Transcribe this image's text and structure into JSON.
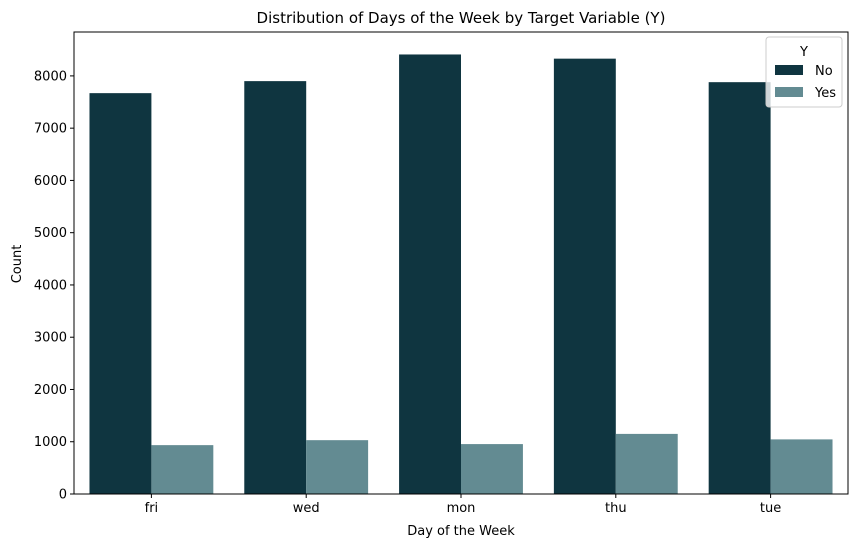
{
  "chart_data": {
    "type": "bar",
    "title": "Distribution of Days of the Week by Target Variable (Y)",
    "xlabel": "Day of the Week",
    "ylabel": "Count",
    "categories": [
      "fri",
      "wed",
      "mon",
      "thu",
      "tue"
    ],
    "series": [
      {
        "name": "No",
        "color": "#0f3540",
        "values": [
          7670,
          7900,
          8410,
          8330,
          7880
        ]
      },
      {
        "name": "Yes",
        "color": "#638b92",
        "values": [
          935,
          1030,
          955,
          1150,
          1045
        ]
      }
    ],
    "ylim": [
      0,
      8840
    ],
    "yticks": [
      0,
      1000,
      2000,
      3000,
      4000,
      5000,
      6000,
      7000,
      8000
    ],
    "grid": false,
    "legend": {
      "title": "Y",
      "placement": "top-right"
    }
  }
}
